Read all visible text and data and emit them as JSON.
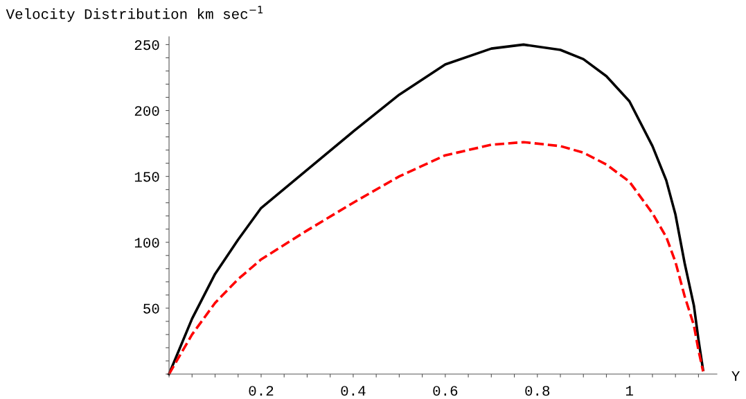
{
  "chart_data": {
    "type": "line",
    "ylabel": "Velocity Distribution km sec$^{−1}$",
    "xlabel": "Y",
    "x": [
      0,
      0.05,
      0.1,
      0.15,
      0.2,
      0.3,
      0.4,
      0.5,
      0.6,
      0.7,
      0.77,
      0.85,
      0.9,
      0.95,
      1.0,
      1.05,
      1.08,
      1.1,
      1.12,
      1.14,
      1.15,
      1.16
    ],
    "series": [
      {
        "color": "#000000",
        "line_style": "solid",
        "values": [
          0,
          42,
          76,
          102,
          126,
          155,
          184,
          212,
          235,
          247,
          250,
          246,
          239,
          226,
          207,
          173,
          147,
          121,
          84,
          52,
          26,
          3
        ]
      },
      {
        "color": "#ff0000",
        "line_style": "dashed",
        "values": [
          0,
          30,
          54,
          72,
          87,
          109,
          130,
          150,
          166,
          174,
          176,
          173,
          168,
          159,
          146,
          122,
          104,
          85,
          59,
          37,
          18,
          2
        ]
      }
    ],
    "xlim": [
      0,
      1.19
    ],
    "ylim": [
      0,
      256
    ],
    "xticks": [
      {
        "value": 0,
        "label": null
      },
      {
        "value": 0.05,
        "label": null
      },
      {
        "value": 0.1,
        "label": null
      },
      {
        "value": 0.15,
        "label": null
      },
      {
        "value": 0.2,
        "label": "0.2"
      },
      {
        "value": 0.25,
        "label": null
      },
      {
        "value": 0.3,
        "label": null
      },
      {
        "value": 0.35,
        "label": null
      },
      {
        "value": 0.4,
        "label": "0.4"
      },
      {
        "value": 0.45,
        "label": null
      },
      {
        "value": 0.5,
        "label": null
      },
      {
        "value": 0.55,
        "label": null
      },
      {
        "value": 0.6,
        "label": "0.6"
      },
      {
        "value": 0.65,
        "label": null
      },
      {
        "value": 0.7,
        "label": null
      },
      {
        "value": 0.75,
        "label": null
      },
      {
        "value": 0.8,
        "label": "0.8"
      },
      {
        "value": 0.85,
        "label": null
      },
      {
        "value": 0.9,
        "label": null
      },
      {
        "value": 0.95,
        "label": null
      },
      1,
      {
        "value": 1.05,
        "label": null
      },
      {
        "value": 1.1,
        "label": null
      },
      {
        "value": 1.15,
        "label": null
      }
    ],
    "yticks": [
      {
        "value": 0,
        "label": null
      },
      {
        "value": 10,
        "label": null
      },
      {
        "value": 20,
        "label": null
      },
      {
        "value": 30,
        "label": null
      },
      {
        "value": 40,
        "label": null
      },
      50,
      {
        "value": 60,
        "label": null
      },
      {
        "value": 70,
        "label": null
      },
      {
        "value": 80,
        "label": null
      },
      {
        "value": 90,
        "label": null
      },
      100,
      {
        "value": 110,
        "label": null
      },
      {
        "value": 120,
        "label": null
      },
      {
        "value": 130,
        "label": null
      },
      {
        "value": 140,
        "label": null
      },
      150,
      {
        "value": 160,
        "label": null
      },
      {
        "value": 170,
        "label": null
      },
      {
        "value": 180,
        "label": null
      },
      {
        "value": 190,
        "label": null
      },
      200,
      {
        "value": 210,
        "label": null
      },
      {
        "value": 220,
        "label": null
      },
      {
        "value": 230,
        "label": null
      },
      {
        "value": 240,
        "label": null
      },
      250
    ],
    "grid": false,
    "legend": false
  }
}
